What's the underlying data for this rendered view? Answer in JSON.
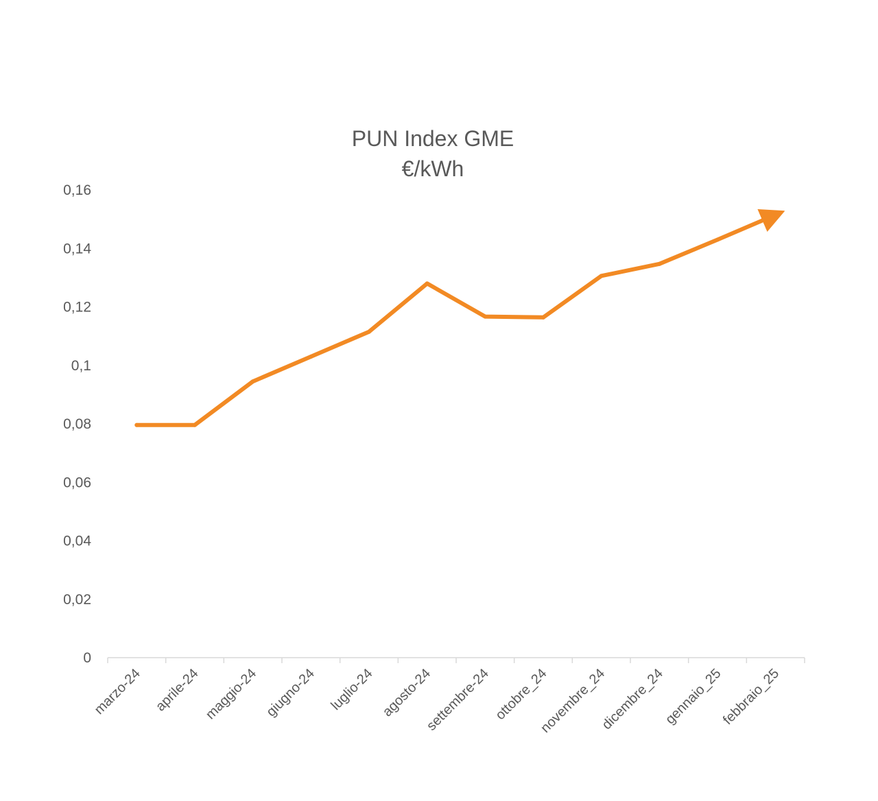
{
  "chart_data": {
    "type": "line",
    "title": "PUN Index GME",
    "subtitle": "€/kWh",
    "xlabel": "",
    "ylabel": "",
    "categories": [
      "marzo-24",
      "aprile-24",
      "maggio-24",
      "giugno-24",
      "luglio-24",
      "agosto-24",
      "settembre-24",
      "ottobre_24",
      "novembre_24",
      "dicembre_24",
      "gennaio_25",
      "febbraio_25"
    ],
    "series": [
      {
        "values": [
          0.0796,
          0.0796,
          0.0945,
          0.103,
          0.1115,
          0.128,
          0.1167,
          0.1164,
          0.1306,
          0.1347,
          0.143,
          0.1515
        ],
        "color": "#F28A24"
      }
    ],
    "y_ticks": [
      "0",
      "0,02",
      "0,04",
      "0,06",
      "0,08",
      "0,1",
      "0,12",
      "0,14",
      "0,16"
    ],
    "ylim": [
      0,
      0.16
    ],
    "grid": false,
    "legend": "none",
    "end_marker": "arrow"
  }
}
